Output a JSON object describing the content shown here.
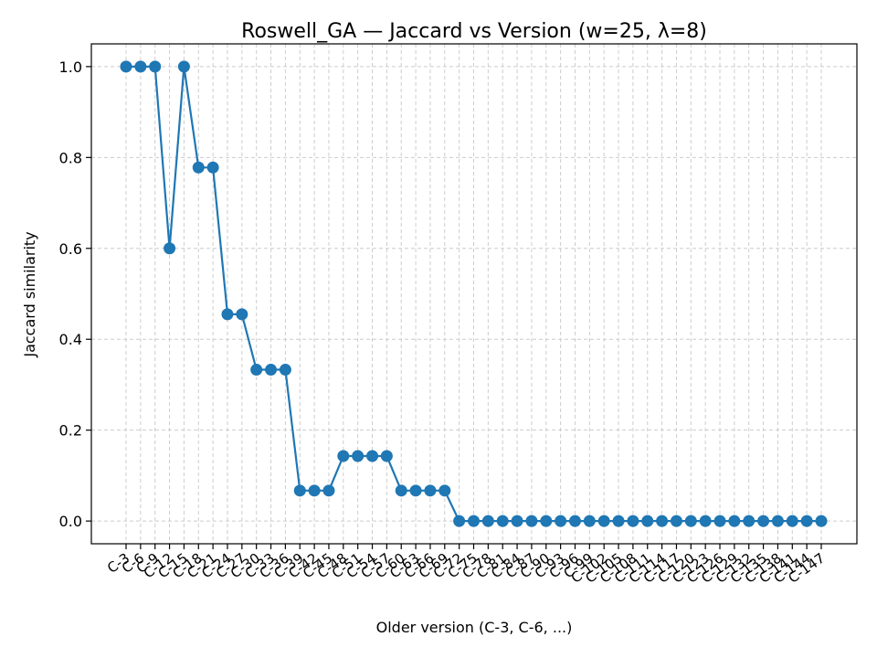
{
  "chart_data": {
    "type": "line",
    "title": "Roswell_GA — Jaccard vs Version (w=25, λ=8)",
    "xlabel": "Older version (C-3, C-6, ...)",
    "ylabel": "Jaccard similarity",
    "ylim": [
      -0.05,
      1.05
    ],
    "yticks": [
      0.0,
      0.2,
      0.4,
      0.6,
      0.8,
      1.0
    ],
    "ytick_labels": [
      "0.0",
      "0.2",
      "0.4",
      "0.6",
      "0.8",
      "1.0"
    ],
    "grid": true,
    "color": "#1f77b4",
    "categories": [
      "C-3",
      "C-6",
      "C-9",
      "C-12",
      "C-15",
      "C-18",
      "C-21",
      "C-24",
      "C-27",
      "C-30",
      "C-33",
      "C-36",
      "C-39",
      "C-42",
      "C-45",
      "C-48",
      "C-51",
      "C-54",
      "C-57",
      "C-60",
      "C-63",
      "C-66",
      "C-69",
      "C-72",
      "C-75",
      "C-78",
      "C-81",
      "C-84",
      "C-87",
      "C-90",
      "C-93",
      "C-96",
      "C-99",
      "C-102",
      "C-105",
      "C-108",
      "C-111",
      "C-114",
      "C-117",
      "C-120",
      "C-123",
      "C-126",
      "C-129",
      "C-132",
      "C-135",
      "C-138",
      "C-141",
      "C-144",
      "C-147"
    ],
    "values": [
      1.0,
      1.0,
      1.0,
      0.6,
      1.0,
      0.778,
      0.778,
      0.455,
      0.455,
      0.333,
      0.333,
      0.333,
      0.067,
      0.067,
      0.067,
      0.143,
      0.143,
      0.143,
      0.143,
      0.067,
      0.067,
      0.067,
      0.067,
      0,
      0,
      0,
      0,
      0,
      0,
      0,
      0,
      0,
      0,
      0,
      0,
      0,
      0,
      0,
      0,
      0,
      0,
      0,
      0,
      0,
      0,
      0,
      0,
      0,
      0
    ]
  }
}
